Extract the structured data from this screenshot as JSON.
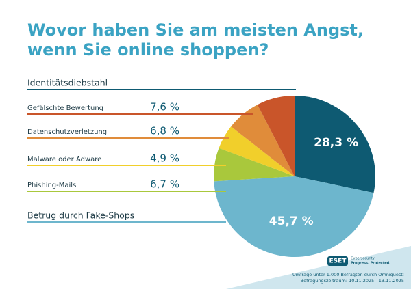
{
  "chart_data": {
    "type": "pie",
    "title": [
      "Wovor haben Sie am meisten Angst,",
      "wenn Sie online shoppen?"
    ],
    "categories": [
      "Identitätsdiebstahl",
      "Gefälschte Bewertung",
      "Datenschutzverletzung",
      "Malware oder Adware",
      "Phishing-Mails",
      "Betrug durch Fake-Shops"
    ],
    "values": [
      28.3,
      7.6,
      6.8,
      4.9,
      6.7,
      45.7
    ],
    "value_labels": [
      "28,3 %",
      "7,6 %",
      "6,8 %",
      "4,9 %",
      "6,7 %",
      "45,7 %"
    ],
    "colors": [
      "#0e5a72",
      "#c9552a",
      "#e08c3a",
      "#f1cf2b",
      "#a9c83c",
      "#6db6cd"
    ],
    "logo": {
      "brand": "ESET",
      "tagline": [
        "Cybersecurity",
        "Progress. Protected."
      ]
    },
    "footnote": [
      "Umfrage unter 1.000 Befragten durch Omniquest;",
      "Befragungszeitraum: 10.11.2025 - 13.11.2025"
    ]
  }
}
